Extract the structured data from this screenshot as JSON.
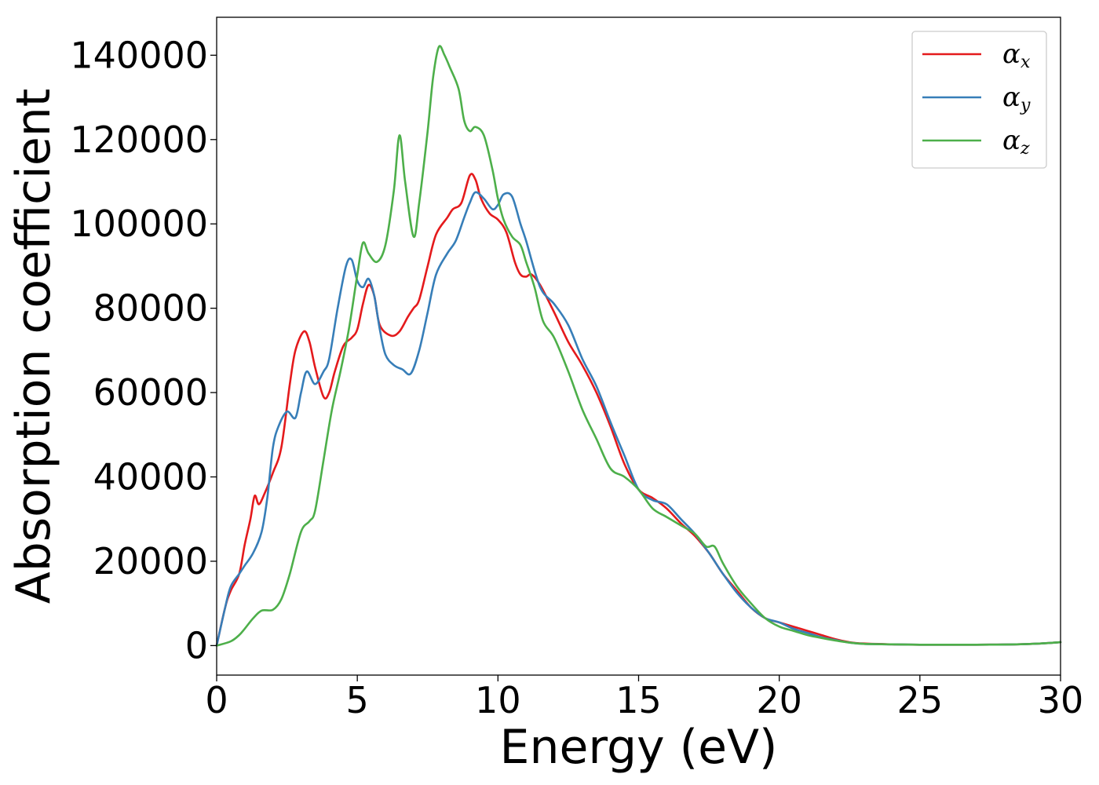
{
  "chart_data": {
    "type": "line",
    "title": "",
    "xlabel": "Energy (eV)",
    "ylabel": "Absorption coefficient",
    "xlim": [
      0,
      30
    ],
    "ylim": [
      -7000,
      149000
    ],
    "xticks": [
      0,
      5,
      10,
      15,
      20,
      25,
      30
    ],
    "yticks": [
      0,
      20000,
      40000,
      60000,
      80000,
      100000,
      120000,
      140000
    ],
    "grid": false,
    "legend_position": "top-right",
    "series": [
      {
        "name": "αx",
        "symbol": "α",
        "subscript": "x",
        "color": "#e41a1c",
        "x": [
          0,
          0.3,
          0.5,
          0.8,
          1.0,
          1.2,
          1.35,
          1.5,
          1.7,
          2.0,
          2.3,
          2.6,
          2.8,
          3.1,
          3.3,
          3.5,
          3.8,
          4.0,
          4.2,
          4.5,
          4.8,
          5.0,
          5.2,
          5.4,
          5.6,
          5.8,
          6.2,
          6.5,
          6.8,
          7.0,
          7.2,
          7.5,
          7.8,
          8.2,
          8.4,
          8.7,
          9.0,
          9.2,
          9.4,
          9.7,
          10.0,
          10.3,
          10.6,
          10.8,
          11.0,
          11.2,
          11.5,
          12.0,
          12.5,
          13.0,
          13.5,
          14.0,
          14.5,
          15.0,
          15.5,
          16.0,
          16.5,
          17.0,
          17.5,
          18.0,
          18.5,
          19.0,
          19.5,
          20.0,
          20.5,
          21.0,
          21.5,
          22.0,
          22.5,
          23.0,
          24.0,
          25.0,
          26.0,
          27.0,
          28.0,
          29.0,
          30.0
        ],
        "values": [
          0,
          9000,
          13000,
          17000,
          24000,
          30000,
          35500,
          33500,
          36000,
          41000,
          47000,
          62000,
          70000,
          74500,
          72000,
          66000,
          59000,
          60000,
          65000,
          71000,
          73000,
          75000,
          81000,
          85500,
          83000,
          76000,
          73500,
          74500,
          78000,
          80000,
          82000,
          90000,
          97500,
          101500,
          103500,
          105000,
          111500,
          110500,
          106000,
          102500,
          101000,
          98000,
          91000,
          88000,
          87500,
          88000,
          85500,
          79000,
          72000,
          66500,
          60000,
          52000,
          43000,
          37000,
          35000,
          32500,
          29000,
          26000,
          22000,
          17000,
          13000,
          9000,
          6500,
          5500,
          4500,
          3500,
          2500,
          1500,
          800,
          500,
          300,
          200,
          200,
          200,
          250,
          400,
          800
        ]
      },
      {
        "name": "αy",
        "symbol": "α",
        "subscript": "y",
        "color": "#377eb8",
        "x": [
          0,
          0.3,
          0.5,
          0.8,
          1.0,
          1.3,
          1.6,
          1.8,
          2.0,
          2.2,
          2.5,
          2.8,
          3.0,
          3.2,
          3.5,
          3.8,
          4.0,
          4.3,
          4.6,
          4.8,
          5.0,
          5.2,
          5.4,
          5.6,
          5.8,
          6.0,
          6.3,
          6.6,
          6.9,
          7.2,
          7.5,
          7.8,
          8.2,
          8.5,
          8.8,
          9.0,
          9.2,
          9.5,
          9.8,
          10.0,
          10.2,
          10.5,
          10.8,
          11.0,
          11.5,
          12.0,
          12.5,
          13.0,
          13.5,
          14.0,
          14.5,
          15.0,
          15.5,
          16.0,
          16.5,
          17.0,
          17.5,
          18.0,
          18.5,
          19.0,
          19.5,
          20.0,
          20.5,
          21.0,
          21.5,
          22.0,
          22.5,
          23.0,
          24.0,
          25.0,
          26.0,
          27.0,
          28.0,
          29.0,
          30.0
        ],
        "values": [
          0,
          9000,
          14000,
          17000,
          19000,
          22000,
          27000,
          35000,
          47000,
          52000,
          55500,
          54000,
          60000,
          65000,
          62000,
          65000,
          68000,
          80000,
          90000,
          91500,
          86500,
          85000,
          87000,
          83000,
          75000,
          69000,
          66500,
          65500,
          64500,
          70000,
          79000,
          88000,
          93000,
          96000,
          101500,
          105000,
          107500,
          106000,
          103500,
          104500,
          107000,
          106500,
          100000,
          96000,
          85000,
          81000,
          76000,
          68000,
          61500,
          53000,
          45000,
          37000,
          34500,
          33500,
          30000,
          26500,
          22000,
          17000,
          12500,
          9000,
          6500,
          5500,
          4000,
          3000,
          2000,
          1300,
          700,
          400,
          300,
          200,
          200,
          200,
          250,
          400,
          800
        ]
      },
      {
        "name": "αz",
        "symbol": "α",
        "subscript": "z",
        "color": "#4daf4a",
        "x": [
          0,
          0.5,
          0.8,
          1.0,
          1.3,
          1.6,
          2.0,
          2.3,
          2.6,
          3.0,
          3.3,
          3.5,
          3.8,
          4.1,
          4.4,
          4.7,
          5.0,
          5.2,
          5.4,
          5.7,
          6.0,
          6.3,
          6.5,
          6.7,
          7.0,
          7.2,
          7.5,
          7.7,
          7.9,
          8.1,
          8.3,
          8.6,
          8.8,
          9.0,
          9.2,
          9.5,
          9.8,
          10.0,
          10.2,
          10.5,
          10.8,
          11.0,
          11.3,
          11.6,
          12.0,
          12.5,
          13.0,
          13.5,
          14.0,
          14.5,
          15.0,
          15.5,
          16.0,
          16.5,
          17.0,
          17.4,
          17.7,
          18.0,
          18.5,
          19.0,
          19.5,
          20.0,
          20.5,
          21.0,
          21.5,
          22.0,
          22.5,
          23.0,
          24.0,
          25.0,
          26.0,
          27.0,
          28.0,
          29.0,
          30.0
        ],
        "values": [
          0,
          1000,
          2500,
          4000,
          6500,
          8300,
          8500,
          11000,
          17000,
          27000,
          29500,
          32000,
          44000,
          56000,
          65000,
          75000,
          88000,
          95500,
          93000,
          91000,
          95000,
          108000,
          121000,
          110000,
          97000,
          105000,
          122000,
          135000,
          142000,
          140000,
          137000,
          132000,
          124500,
          122000,
          123000,
          121000,
          113000,
          106000,
          101000,
          97000,
          95000,
          91000,
          85000,
          77000,
          73000,
          65000,
          56000,
          49000,
          42000,
          40000,
          37000,
          32500,
          30500,
          28500,
          26500,
          23500,
          23500,
          19500,
          14000,
          10000,
          6500,
          4500,
          3500,
          2500,
          1800,
          1200,
          700,
          400,
          300,
          200,
          200,
          200,
          250,
          400,
          800
        ]
      }
    ]
  }
}
